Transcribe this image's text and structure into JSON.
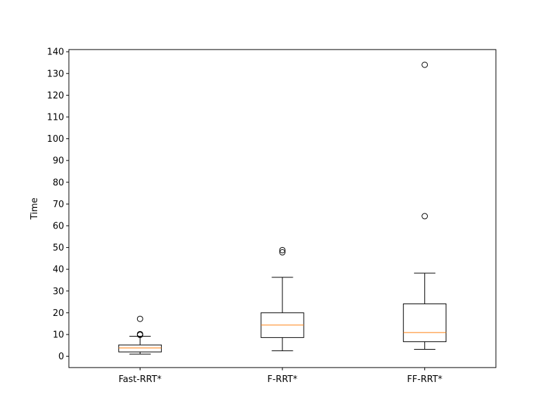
{
  "chart_data": {
    "type": "box",
    "title": "",
    "xlabel": "",
    "ylabel": "Time",
    "ylim": [
      -5.2,
      141
    ],
    "yticks": [
      0,
      10,
      20,
      30,
      40,
      50,
      60,
      70,
      80,
      90,
      100,
      110,
      120,
      130,
      140
    ],
    "grid": false,
    "categories": [
      "Fast-RRT*",
      "F-RRT*",
      "FF-RRT*"
    ],
    "boxes": [
      {
        "category": "Fast-RRT*",
        "whisker_low": 1.0,
        "q1": 2.0,
        "median": 3.8,
        "q3": 5.2,
        "whisker_high": 9.2,
        "outliers": [
          9.8,
          10.2,
          17.2
        ]
      },
      {
        "category": "F-RRT*",
        "whisker_low": 2.5,
        "q1": 8.6,
        "median": 14.4,
        "q3": 20.0,
        "whisker_high": 36.3,
        "outliers": [
          47.8,
          48.8
        ]
      },
      {
        "category": "FF-RRT*",
        "whisker_low": 3.2,
        "q1": 6.7,
        "median": 10.9,
        "q3": 24.1,
        "whisker_high": 38.2,
        "outliers": [
          64.4,
          134.0
        ]
      }
    ],
    "colors": {
      "box": "#000000",
      "median": "#ff7f0e",
      "flier": "#000000"
    }
  }
}
